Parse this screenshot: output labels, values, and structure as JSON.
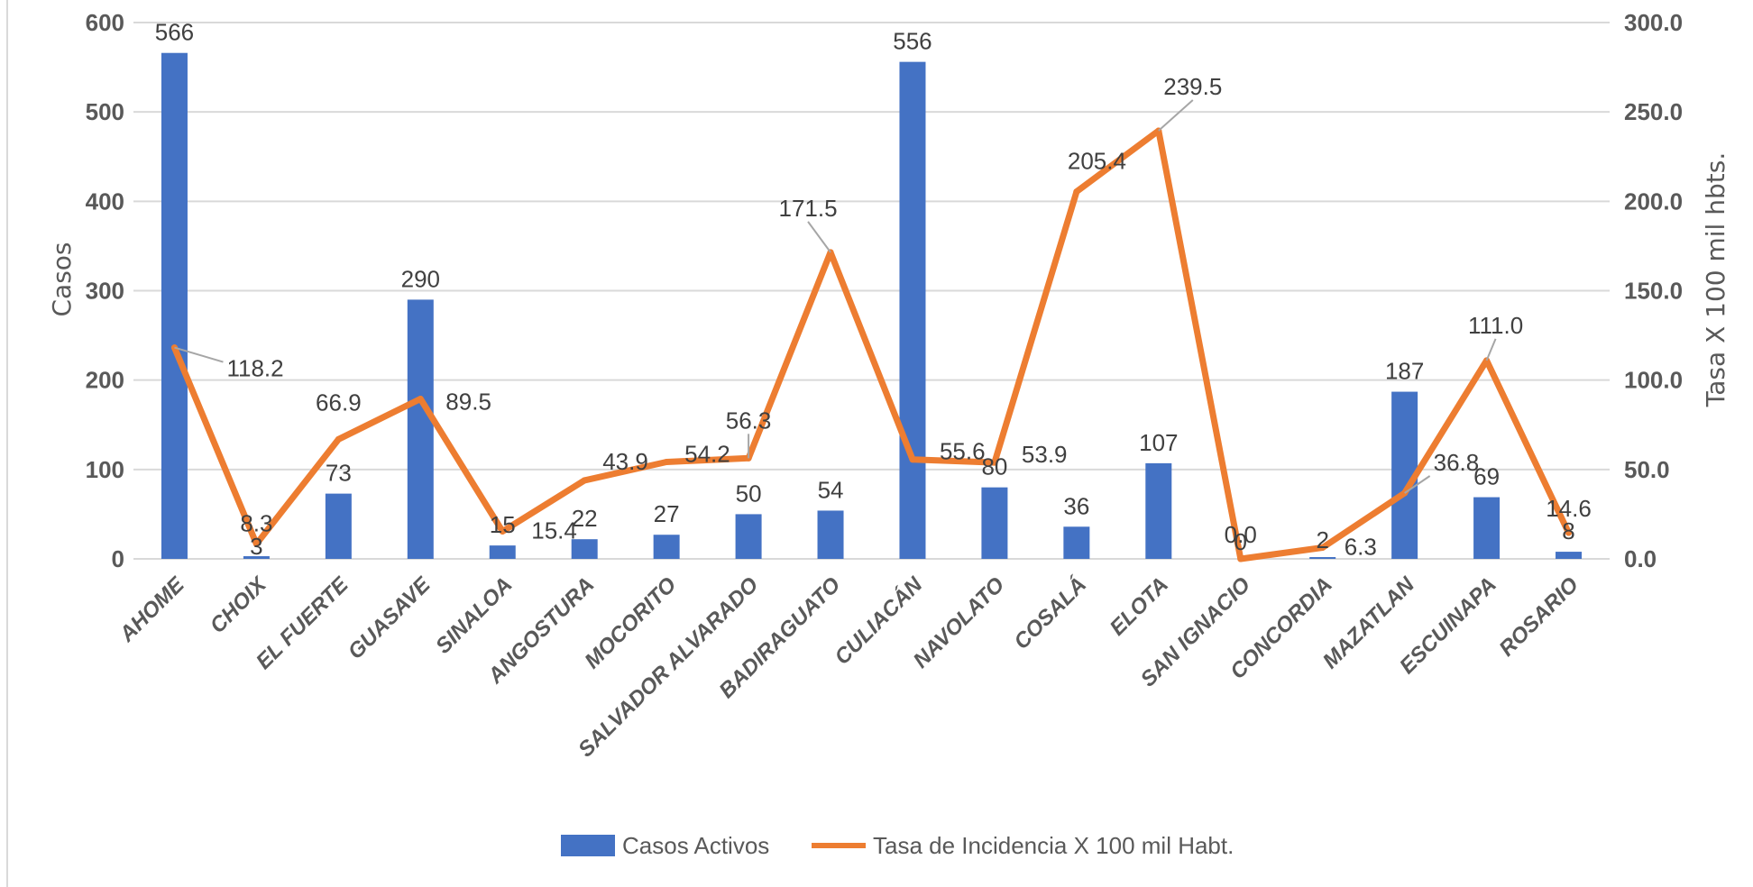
{
  "chart_data": {
    "type": "bar",
    "categories": [
      "AHOME",
      "CHOIX",
      "EL FUERTE",
      "GUASAVE",
      "SINALOA",
      "ANGOSTURA",
      "MOCORITO",
      "SALVADOR ALVARADO",
      "BADIRAGUATO",
      "CULIACÁN",
      "NAVOLATO",
      "COSALÁ",
      "ELOTA",
      "SAN IGNACIO",
      "CONCORDIA",
      "MAZATLAN",
      "ESCUINAPA",
      "ROSARIO"
    ],
    "series": [
      {
        "name": "Casos Activos",
        "type": "bar",
        "axis": "left",
        "color": "#4472c4",
        "values": [
          566,
          3,
          73,
          290,
          15,
          22,
          27,
          50,
          54,
          556,
          80,
          36,
          107,
          0,
          2,
          187,
          69,
          8
        ],
        "labels": [
          "566",
          "3",
          "73",
          "290",
          "15",
          "22",
          "27",
          "50",
          "54",
          "556",
          "80",
          "36",
          "107",
          "0",
          "2",
          "187",
          "69",
          "8"
        ]
      },
      {
        "name": "Tasa de Incidencia X 100 mil Habt.",
        "type": "line",
        "axis": "right",
        "color": "#ed7d31",
        "values": [
          118.2,
          8.3,
          66.9,
          89.5,
          15.4,
          43.9,
          54.2,
          56.3,
          171.5,
          55.6,
          53.9,
          205.4,
          239.5,
          0.0,
          6.3,
          36.8,
          111.0,
          14.6
        ],
        "labels": [
          "118.2",
          "8.3",
          "66.9",
          "89.5",
          "15.4",
          "43.9",
          "54.2",
          "56.3",
          "171.5",
          "55.6",
          "53.9",
          "205.4",
          "239.5",
          "0.0",
          "6.3",
          "36.8",
          "111.0",
          "14.6"
        ]
      }
    ],
    "ylabel": "Casos",
    "y2label": "Tasa X 100 mil hbts.",
    "ylim": [
      0,
      600
    ],
    "y2lim": [
      0,
      300
    ],
    "yticks": [
      "0",
      "100",
      "200",
      "300",
      "400",
      "500",
      "600"
    ],
    "y2ticks": [
      "0.0",
      "50.0",
      "100.0",
      "150.0",
      "200.0",
      "250.0",
      "300.0"
    ],
    "grid": true,
    "legend_position": "bottom"
  }
}
